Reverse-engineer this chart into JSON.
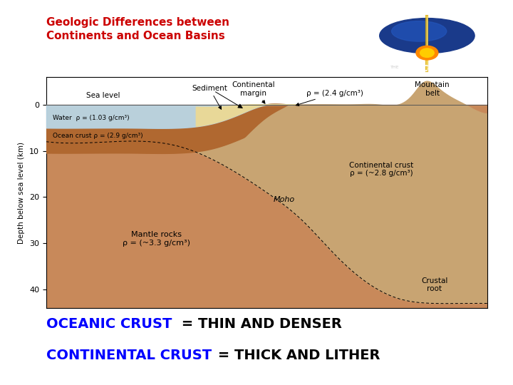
{
  "title": "Geologic Differences between\nContinents and Ocean Basins",
  "title_color": "#cc0000",
  "title_fontsize": 11,
  "bg_color": "#ffffff",
  "bottom_text1_blue": "OCEANIC CRUST",
  "bottom_text1_black": " = THIN AND DENSER",
  "bottom_text2_blue": "CONTINENTAL CRUST",
  "bottom_text2_black": " = THICK AND LITHER",
  "bottom_fontsize": 14,
  "ylabel": "Depth below sea level (km)",
  "yticks": [
    0,
    10,
    20,
    30,
    40
  ],
  "ylim": [
    44,
    -6
  ],
  "xlim": [
    0,
    100
  ],
  "mantle_color": "#c8895a",
  "ocean_crust_color": "#b06830",
  "continental_crust_color": "#c8a472",
  "water_color": "#b8d8ea",
  "sediment_color": "#e8d898",
  "mountain_color": "#b09070"
}
